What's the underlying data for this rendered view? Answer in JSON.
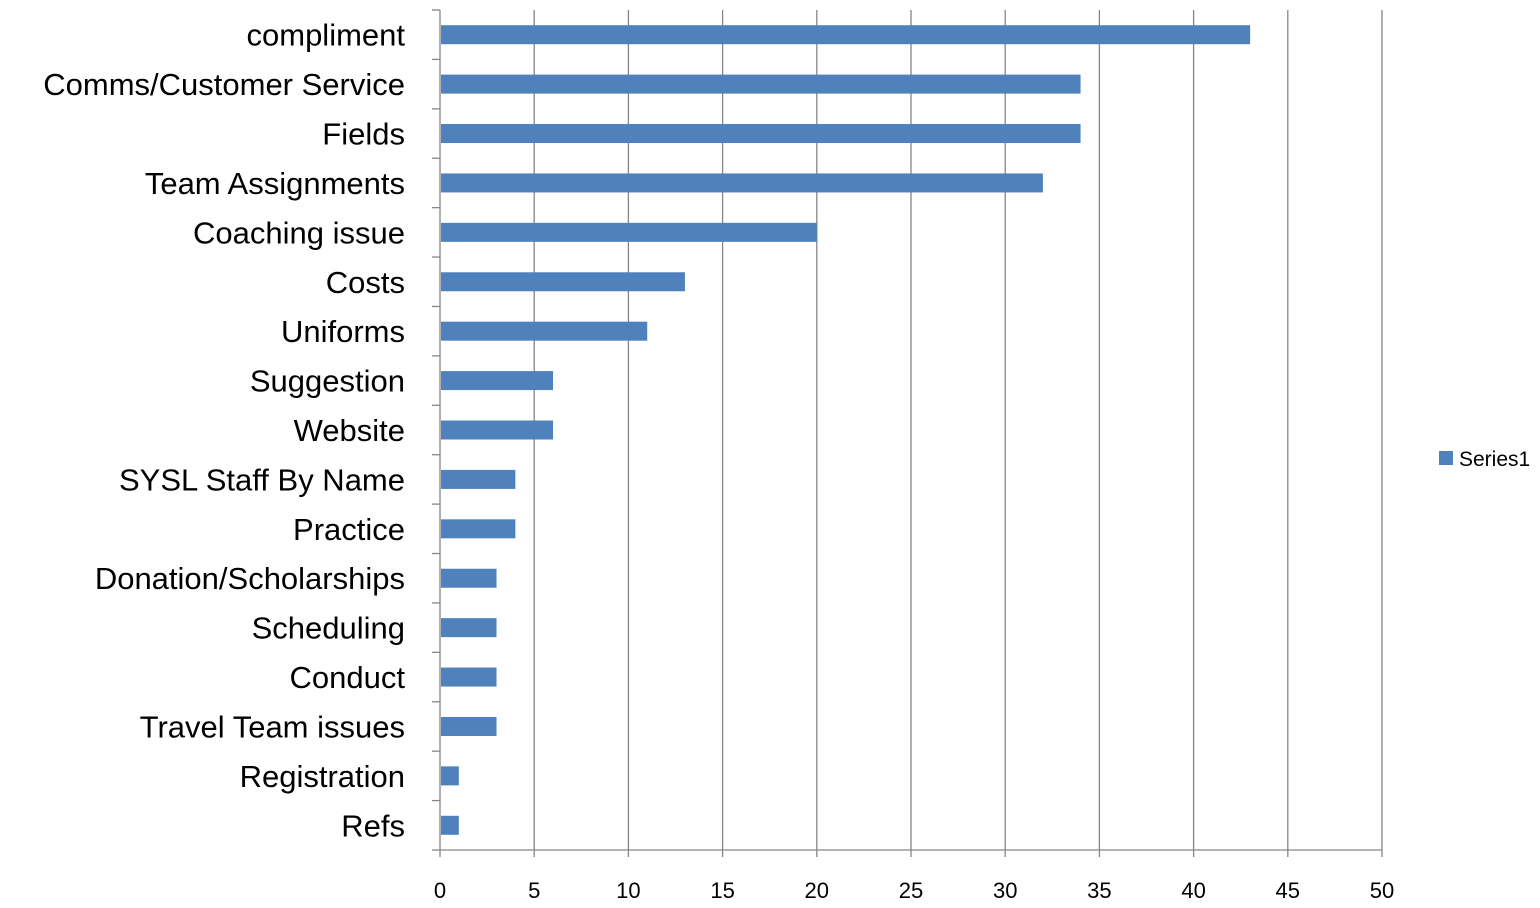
{
  "chart_data": {
    "type": "bar",
    "orientation": "horizontal",
    "categories": [
      "compliment",
      "Comms/Customer Service",
      "Fields",
      "Team Assignments",
      "Coaching issue",
      "Costs",
      "Uniforms",
      "Suggestion",
      "Website",
      "SYSL Staff By Name",
      "Practice",
      "Donation/Scholarships",
      "Scheduling",
      "Conduct",
      "Travel Team issues",
      "Registration",
      "Refs"
    ],
    "series": [
      {
        "name": "Series1",
        "values": [
          43,
          34,
          34,
          32,
          20,
          13,
          11,
          6,
          6,
          4,
          4,
          3,
          3,
          3,
          3,
          1,
          1
        ],
        "color": "#4F81BD"
      }
    ],
    "x_ticks": [
      "0",
      "5",
      "10",
      "15",
      "20",
      "25",
      "30",
      "35",
      "40",
      "45",
      "50"
    ],
    "xlim": [
      0,
      50
    ],
    "grid": "vertical",
    "legend_position": "right",
    "gridline_color": "#868686",
    "axis_color": "#868686"
  }
}
